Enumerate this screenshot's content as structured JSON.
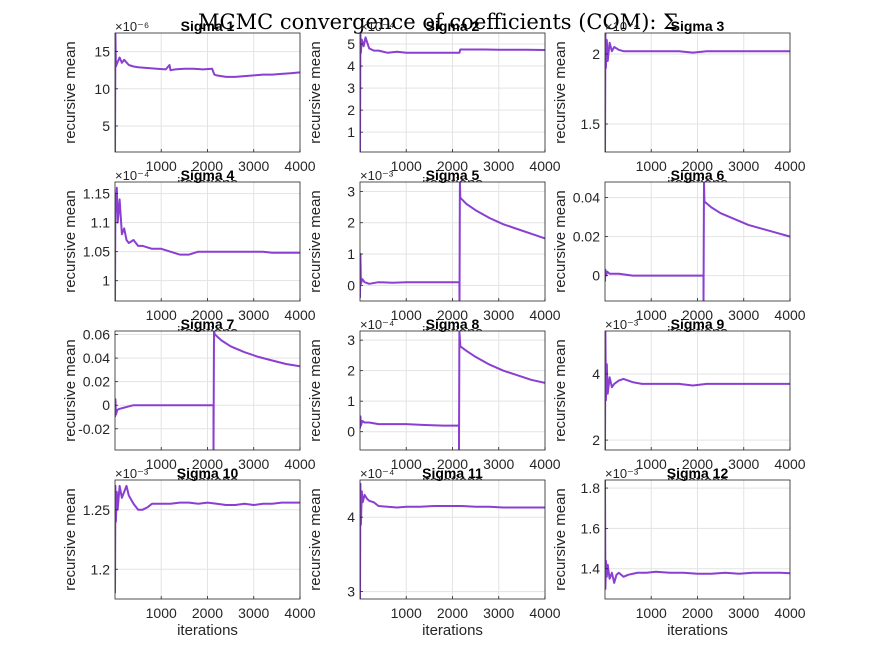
{
  "figure": {
    "suptitle": "MCMC convergence of coefficients (COM): Σ",
    "line_color": "#8b3fd2"
  },
  "chart_data": [
    {
      "type": "line",
      "title": "Sigma 1",
      "xlabel": "iterations",
      "ylabel": "recursive mean",
      "exponent": "×10⁻⁶",
      "xlim": [
        1,
        4000
      ],
      "ylim": [
        1.5,
        17.5
      ],
      "xticks": [
        1000,
        2000,
        3000,
        4000
      ],
      "yticks": [
        5,
        10,
        15
      ],
      "yticklabels": [
        "5",
        "10",
        "15"
      ],
      "grid": true,
      "series": [
        {
          "x": [
            1,
            10,
            20,
            50,
            100,
            150,
            200,
            300,
            400,
            500,
            700,
            900,
            1100,
            1180,
            1200,
            1300,
            1500,
            1700,
            1900,
            2100,
            2150,
            2200,
            2400,
            2600,
            2800,
            3000,
            3200,
            3400,
            3600,
            3800,
            4000
          ],
          "y": [
            1.5,
            17.5,
            13,
            13.5,
            14.2,
            13.5,
            13.9,
            13.2,
            13.0,
            12.9,
            12.8,
            12.7,
            12.6,
            13.2,
            12.5,
            12.6,
            12.7,
            12.7,
            12.6,
            12.7,
            11.9,
            11.8,
            11.6,
            11.6,
            11.7,
            11.8,
            11.9,
            11.9,
            12.0,
            12.1,
            12.2
          ]
        }
      ]
    },
    {
      "type": "line",
      "title": "Sigma 2",
      "xlabel": "iterations",
      "ylabel": "recursive mean",
      "exponent": "×10⁻⁴",
      "xlim": [
        1,
        4000
      ],
      "ylim": [
        0.1,
        5.5
      ],
      "xticks": [
        1000,
        2000,
        3000,
        4000
      ],
      "yticks": [
        1,
        2,
        3,
        4,
        5
      ],
      "yticklabels": [
        "1",
        "2",
        "3",
        "4",
        "5"
      ],
      "grid": true,
      "series": [
        {
          "x": [
            1,
            10,
            20,
            40,
            80,
            120,
            200,
            300,
            400,
            600,
            800,
            1000,
            1300,
            1600,
            1900,
            2150,
            2170,
            2400,
            2700,
            3000,
            3300,
            3600,
            4000
          ],
          "y": [
            0.1,
            5.5,
            4.6,
            5.2,
            4.9,
            5.3,
            4.8,
            4.7,
            4.7,
            4.6,
            4.65,
            4.6,
            4.6,
            4.6,
            4.6,
            4.6,
            4.75,
            4.75,
            4.75,
            4.74,
            4.74,
            4.74,
            4.73
          ]
        }
      ]
    },
    {
      "type": "line",
      "title": "Sigma 3",
      "xlabel": "iterations",
      "ylabel": "recursive mean",
      "exponent": "×10⁻⁴",
      "xlim": [
        1,
        4000
      ],
      "ylim": [
        1.3,
        2.15
      ],
      "xticks": [
        1000,
        2000,
        3000,
        4000
      ],
      "yticks": [
        1.5,
        2
      ],
      "yticklabels": [
        "1.5",
        "2"
      ],
      "grid": true,
      "series": [
        {
          "x": [
            1,
            10,
            20,
            40,
            60,
            100,
            150,
            200,
            300,
            400,
            600,
            800,
            1000,
            1300,
            1600,
            1900,
            2200,
            2500,
            2800,
            3100,
            3400,
            3700,
            4000
          ],
          "y": [
            1.3,
            2.15,
            1.9,
            2.1,
            1.95,
            2.08,
            2.02,
            2.05,
            2.03,
            2.02,
            2.02,
            2.02,
            2.02,
            2.02,
            2.02,
            2.01,
            2.02,
            2.02,
            2.02,
            2.02,
            2.02,
            2.02,
            2.02
          ]
        }
      ]
    },
    {
      "type": "line",
      "title": "Sigma 4",
      "xlabel": "iterations",
      "ylabel": "recursive mean",
      "exponent": "×10⁻⁴",
      "xlim": [
        1,
        4000
      ],
      "ylim": [
        0.965,
        1.17
      ],
      "xticks": [
        1000,
        2000,
        3000,
        4000
      ],
      "yticks": [
        1,
        1.05,
        1.1,
        1.15
      ],
      "yticklabels": [
        "1",
        "1.05",
        "1.1",
        "1.15"
      ],
      "grid": true,
      "series": [
        {
          "x": [
            1,
            10,
            20,
            40,
            60,
            100,
            150,
            200,
            250,
            300,
            400,
            500,
            600,
            800,
            1000,
            1200,
            1400,
            1600,
            1800,
            2000,
            2200,
            2400,
            2600,
            2800,
            3000,
            3200,
            3400,
            3600,
            3800,
            4000
          ],
          "y": [
            0.965,
            1.15,
            1.12,
            1.16,
            1.1,
            1.14,
            1.08,
            1.09,
            1.07,
            1.065,
            1.07,
            1.06,
            1.06,
            1.055,
            1.055,
            1.05,
            1.045,
            1.045,
            1.05,
            1.05,
            1.05,
            1.05,
            1.05,
            1.05,
            1.05,
            1.05,
            1.048,
            1.048,
            1.048,
            1.048
          ]
        }
      ]
    },
    {
      "type": "line",
      "title": "Sigma 5",
      "xlabel": "iterations",
      "ylabel": "recursive mean",
      "exponent": "×10⁻³",
      "xlim": [
        1,
        4000
      ],
      "ylim": [
        -0.5,
        3.3
      ],
      "xticks": [
        1000,
        2000,
        3000,
        4000
      ],
      "yticks": [
        0,
        1,
        2,
        3
      ],
      "yticklabels": [
        "0",
        "1",
        "2",
        "3"
      ],
      "grid": true,
      "series": [
        {
          "x": [
            1,
            10,
            20,
            50,
            100,
            200,
            400,
            700,
            1000,
            1400,
            1800,
            2150,
            2151,
            2160,
            2170,
            2300,
            2500,
            2800,
            3100,
            3400,
            3700,
            4000
          ],
          "y": [
            -0.4,
            1.0,
            0.05,
            0.2,
            0.1,
            0.05,
            0.1,
            0.08,
            0.1,
            0.1,
            0.1,
            0.1,
            -0.5,
            3.3,
            2.8,
            2.6,
            2.4,
            2.15,
            1.95,
            1.8,
            1.65,
            1.5
          ]
        }
      ]
    },
    {
      "type": "line",
      "title": "Sigma 6",
      "xlabel": "iterations",
      "ylabel": "recursive mean",
      "xlim": [
        1,
        4000
      ],
      "ylim": [
        -0.013,
        0.048
      ],
      "xticks": [
        1000,
        2000,
        3000,
        4000
      ],
      "yticks": [
        0,
        0.02,
        0.04
      ],
      "yticklabels": [
        "0",
        "0.02",
        "0.04"
      ],
      "grid": true,
      "series": [
        {
          "x": [
            1,
            10,
            20,
            50,
            100,
            300,
            600,
            1000,
            1400,
            1800,
            2130,
            2131,
            2140,
            2150,
            2300,
            2500,
            2800,
            3100,
            3400,
            3700,
            4000
          ],
          "y": [
            -0.003,
            0.003,
            0.0,
            0.002,
            0.001,
            0.001,
            0.0,
            0.0,
            0.0,
            0.0,
            0.0,
            -0.013,
            0.048,
            0.038,
            0.035,
            0.032,
            0.029,
            0.026,
            0.024,
            0.022,
            0.02
          ]
        }
      ]
    },
    {
      "type": "line",
      "title": "Sigma 7",
      "xlabel": "iterations",
      "ylabel": "recursive mean",
      "xlim": [
        1,
        4000
      ],
      "ylim": [
        -0.038,
        0.063
      ],
      "xticks": [
        1000,
        2000,
        3000,
        4000
      ],
      "yticks": [
        -0.02,
        0,
        0.02,
        0.04,
        0.06
      ],
      "yticklabels": [
        "-0.02",
        "0",
        "0.02",
        "0.04",
        "0.06"
      ],
      "grid": true,
      "series": [
        {
          "x": [
            1,
            10,
            20,
            50,
            100,
            200,
            400,
            700,
            1000,
            1400,
            1800,
            2130,
            2131,
            2140,
            2160,
            2300,
            2500,
            2800,
            3100,
            3400,
            3700,
            4000
          ],
          "y": [
            -0.01,
            0.005,
            -0.008,
            -0.004,
            -0.003,
            -0.002,
            0.0,
            0.0,
            0.0,
            0.0,
            0.0,
            0.0,
            -0.038,
            0.063,
            0.06,
            0.055,
            0.05,
            0.045,
            0.041,
            0.038,
            0.035,
            0.033
          ]
        }
      ]
    },
    {
      "type": "line",
      "title": "Sigma 8",
      "xlabel": "iterations",
      "ylabel": "recursive mean",
      "exponent": "×10⁻⁴",
      "xlim": [
        1,
        4000
      ],
      "ylim": [
        -0.6,
        3.3
      ],
      "xticks": [
        1000,
        2000,
        3000,
        4000
      ],
      "yticks": [
        0,
        1,
        2,
        3
      ],
      "yticklabels": [
        "0",
        "1",
        "2",
        "3"
      ],
      "grid": true,
      "series": [
        {
          "x": [
            1,
            10,
            20,
            50,
            100,
            200,
            400,
            700,
            1000,
            1400,
            1800,
            2140,
            2141,
            2150,
            2170,
            2300,
            2500,
            2800,
            3100,
            3400,
            3700,
            4000
          ],
          "y": [
            0.1,
            0.5,
            0.2,
            0.35,
            0.3,
            0.3,
            0.25,
            0.25,
            0.25,
            0.22,
            0.2,
            0.2,
            -0.6,
            3.3,
            2.8,
            2.65,
            2.45,
            2.2,
            2.0,
            1.85,
            1.7,
            1.6
          ]
        }
      ]
    },
    {
      "type": "line",
      "title": "Sigma 9",
      "xlabel": "iterations",
      "ylabel": "recursive mean",
      "exponent": "×10⁻³",
      "xlim": [
        1,
        4000
      ],
      "ylim": [
        1.7,
        5.3
      ],
      "xticks": [
        1000,
        2000,
        3000,
        4000
      ],
      "yticks": [
        2,
        4
      ],
      "yticklabels": [
        "2",
        "4"
      ],
      "grid": true,
      "series": [
        {
          "x": [
            1,
            10,
            20,
            40,
            60,
            100,
            150,
            200,
            300,
            400,
            600,
            800,
            1000,
            1300,
            1600,
            1900,
            2200,
            2500,
            2800,
            3100,
            3400,
            3700,
            4000
          ],
          "y": [
            1.7,
            5.3,
            3.2,
            4.3,
            3.4,
            3.9,
            3.6,
            3.7,
            3.8,
            3.85,
            3.75,
            3.7,
            3.7,
            3.7,
            3.7,
            3.65,
            3.7,
            3.7,
            3.7,
            3.7,
            3.7,
            3.7,
            3.7
          ]
        }
      ]
    },
    {
      "type": "line",
      "title": "Sigma 10",
      "xlabel": "iterations",
      "ylabel": "recursive mean",
      "exponent": "×10⁻³",
      "xlim": [
        1,
        4000
      ],
      "ylim": [
        1.175,
        1.275
      ],
      "xticks": [
        1000,
        2000,
        3000,
        4000
      ],
      "yticks": [
        1.2,
        1.25
      ],
      "yticklabels": [
        "1.2",
        "1.25"
      ],
      "grid": true,
      "series": [
        {
          "x": [
            1,
            10,
            20,
            40,
            60,
            100,
            150,
            200,
            250,
            300,
            400,
            500,
            600,
            700,
            800,
            1000,
            1200,
            1400,
            1600,
            1800,
            2000,
            2200,
            2400,
            2600,
            2800,
            3000,
            3200,
            3400,
            3600,
            3800,
            4000
          ],
          "y": [
            1.18,
            1.27,
            1.24,
            1.265,
            1.25,
            1.27,
            1.26,
            1.265,
            1.27,
            1.262,
            1.255,
            1.25,
            1.25,
            1.252,
            1.255,
            1.255,
            1.255,
            1.256,
            1.256,
            1.255,
            1.256,
            1.255,
            1.254,
            1.254,
            1.255,
            1.254,
            1.255,
            1.255,
            1.256,
            1.256,
            1.256
          ]
        }
      ]
    },
    {
      "type": "line",
      "title": "Sigma 11",
      "xlabel": "iterations",
      "ylabel": "recursive mean",
      "exponent": "×10⁻⁴",
      "xlim": [
        1,
        4000
      ],
      "ylim": [
        2.9,
        4.5
      ],
      "xticks": [
        1000,
        2000,
        3000,
        4000
      ],
      "yticks": [
        3,
        4
      ],
      "yticklabels": [
        "3",
        "4"
      ],
      "grid": true,
      "series": [
        {
          "x": [
            1,
            10,
            20,
            40,
            60,
            100,
            150,
            200,
            300,
            400,
            600,
            800,
            1000,
            1300,
            1600,
            1900,
            2200,
            2500,
            2800,
            3100,
            3400,
            3700,
            4000
          ],
          "y": [
            2.9,
            4.45,
            3.9,
            4.35,
            4.2,
            4.3,
            4.25,
            4.22,
            4.2,
            4.15,
            4.14,
            4.13,
            4.14,
            4.14,
            4.15,
            4.15,
            4.15,
            4.14,
            4.14,
            4.13,
            4.13,
            4.13,
            4.13
          ]
        }
      ]
    },
    {
      "type": "line",
      "title": "Sigma 12",
      "xlabel": "iterations",
      "ylabel": "recursive mean",
      "exponent": "×10⁻³",
      "xlim": [
        1,
        4000
      ],
      "ylim": [
        1.25,
        1.84
      ],
      "xticks": [
        1000,
        2000,
        3000,
        4000
      ],
      "yticks": [
        1.4,
        1.6,
        1.8
      ],
      "yticklabels": [
        "1.4",
        "1.6",
        "1.8"
      ],
      "grid": true,
      "series": [
        {
          "x": [
            1,
            10,
            20,
            40,
            60,
            100,
            150,
            200,
            250,
            300,
            400,
            500,
            700,
            900,
            1100,
            1400,
            1700,
            2000,
            2300,
            2600,
            2900,
            3200,
            3500,
            3800,
            4000
          ],
          "y": [
            1.84,
            1.3,
            1.44,
            1.36,
            1.42,
            1.35,
            1.38,
            1.33,
            1.37,
            1.38,
            1.36,
            1.37,
            1.38,
            1.38,
            1.385,
            1.38,
            1.38,
            1.375,
            1.375,
            1.38,
            1.375,
            1.38,
            1.38,
            1.38,
            1.378
          ]
        }
      ]
    }
  ]
}
